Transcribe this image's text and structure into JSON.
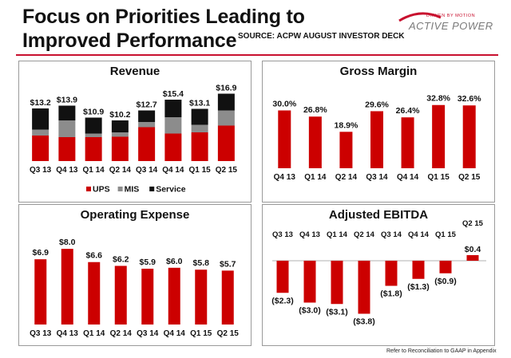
{
  "header": {
    "title_line1": "Focus on Priorities Leading to",
    "title_line2": "Improved Performance",
    "source": "SOURCE: ACPW AUGUST INVESTOR DECK",
    "logo_tagline": "DRIVEN BY MOTION",
    "logo_name": "ACTIVE POWER"
  },
  "footnote": "Refer to Reconciliation to GAAP in Appendix",
  "colors": {
    "red": "#cc0000",
    "gray": "#8c8c8c",
    "black": "#111111"
  },
  "chart_data": [
    {
      "type": "bar",
      "stacked": true,
      "title": "Revenue",
      "categories": [
        "Q3 13",
        "Q4 13",
        "Q1 14",
        "Q2 14",
        "Q3 14",
        "Q4 14",
        "Q1 15",
        "Q2 15"
      ],
      "totals_labels": [
        "$13.2",
        "$13.9",
        "$10.9",
        "$10.2",
        "$12.7",
        "$15.4",
        "$13.1",
        "$16.9"
      ],
      "totals": [
        13.2,
        13.9,
        10.9,
        10.2,
        12.7,
        15.4,
        13.1,
        16.9
      ],
      "series": [
        {
          "name": "UPS",
          "color": "#cc0000",
          "values": [
            6.4,
            6.0,
            6.0,
            6.1,
            8.5,
            6.9,
            7.2,
            8.9
          ]
        },
        {
          "name": "MIS",
          "color": "#8c8c8c",
          "values": [
            1.5,
            4.2,
            0.9,
            1.1,
            1.3,
            4.1,
            1.9,
            3.8
          ]
        },
        {
          "name": "Service",
          "color": "#111111",
          "values": [
            5.3,
            3.7,
            4.0,
            3.0,
            2.9,
            4.4,
            4.0,
            4.2
          ]
        }
      ],
      "legend": "bottom",
      "ylim": [
        0,
        18
      ]
    },
    {
      "type": "bar",
      "title": "Gross Margin",
      "categories": [
        "Q4 13",
        "Q1 14",
        "Q2 14",
        "Q3 14",
        "Q4 14",
        "Q1 15",
        "Q2 15"
      ],
      "values": [
        30.0,
        26.8,
        18.9,
        29.6,
        26.4,
        32.8,
        32.6
      ],
      "labels": [
        "30.0%",
        "26.8%",
        "18.9%",
        "29.6%",
        "26.4%",
        "32.8%",
        "32.6%"
      ],
      "ylim": [
        0,
        36
      ]
    },
    {
      "type": "bar",
      "title": "Operating Expense",
      "categories": [
        "Q3 13",
        "Q4 13",
        "Q1 14",
        "Q2 14",
        "Q3 14",
        "Q4 14",
        "Q1 15",
        "Q2 15"
      ],
      "values": [
        6.9,
        8.0,
        6.6,
        6.2,
        5.9,
        6.0,
        5.8,
        5.7
      ],
      "labels": [
        "$6.9",
        "$8.0",
        "$6.6",
        "$6.2",
        "$5.9",
        "$6.0",
        "$5.8",
        "$5.7"
      ],
      "ylim": [
        0,
        8.6
      ]
    },
    {
      "type": "bar",
      "title": "Adjusted EBITDA",
      "categories": [
        "Q3 13",
        "Q4 13",
        "Q1 14",
        "Q2 14",
        "Q3 14",
        "Q4 14",
        "Q1 15",
        "Q2 15"
      ],
      "values": [
        -2.3,
        -3.0,
        -3.1,
        -3.8,
        -1.8,
        -1.3,
        -0.9,
        0.4
      ],
      "labels": [
        "($2.3)",
        "($3.0)",
        "($3.1)",
        "($3.8)",
        "($1.8)",
        "($1.3)",
        "($0.9)",
        "$0.4"
      ],
      "ylim": [
        -3.8,
        0.4
      ]
    }
  ]
}
